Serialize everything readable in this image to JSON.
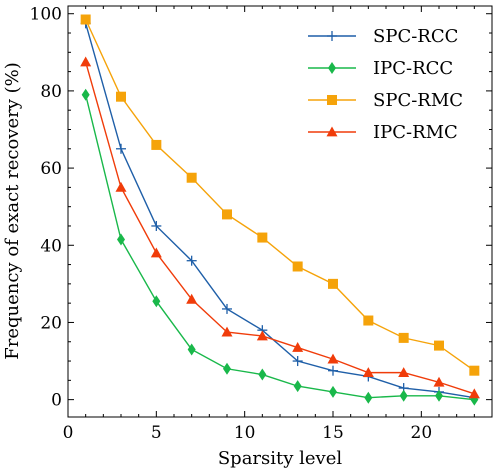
{
  "chart_data": {
    "type": "line",
    "title": "",
    "xlabel": "Sparsity level",
    "ylabel": "Frequency of exact recovery (%)",
    "xlim": [
      0,
      24
    ],
    "ylim": [
      -4.5,
      102
    ],
    "xticks": [
      0,
      5,
      10,
      15,
      20
    ],
    "yticks": [
      0,
      20,
      40,
      60,
      80,
      100
    ],
    "grid": false,
    "legend_position": "top-right",
    "x": [
      1,
      3,
      5,
      7,
      9,
      11,
      13,
      15,
      17,
      19,
      21,
      23
    ],
    "series": [
      {
        "name": "SPC-RCC",
        "color": "#1f5fa8",
        "marker": "plus",
        "values": [
          97.5,
          65,
          45,
          36,
          23.5,
          18,
          10,
          7.5,
          6,
          3,
          2,
          0.5
        ]
      },
      {
        "name": "IPC-RCC",
        "color": "#19b84a",
        "marker": "diamond",
        "values": [
          79,
          41.5,
          25.5,
          13,
          8,
          6.5,
          3.5,
          2,
          0.5,
          1,
          1,
          0
        ]
      },
      {
        "name": "SPC-RMC",
        "color": "#f5a30a",
        "marker": "square",
        "values": [
          98.5,
          78.5,
          66,
          57.5,
          48,
          42,
          34.5,
          30,
          20.5,
          16,
          14,
          7.5
        ]
      },
      {
        "name": "IPC-RMC",
        "color": "#f03c0a",
        "marker": "triangle",
        "values": [
          87.5,
          55,
          38,
          26,
          17.5,
          16.5,
          13.5,
          10.5,
          7,
          7,
          4.5,
          1.5
        ]
      }
    ]
  }
}
